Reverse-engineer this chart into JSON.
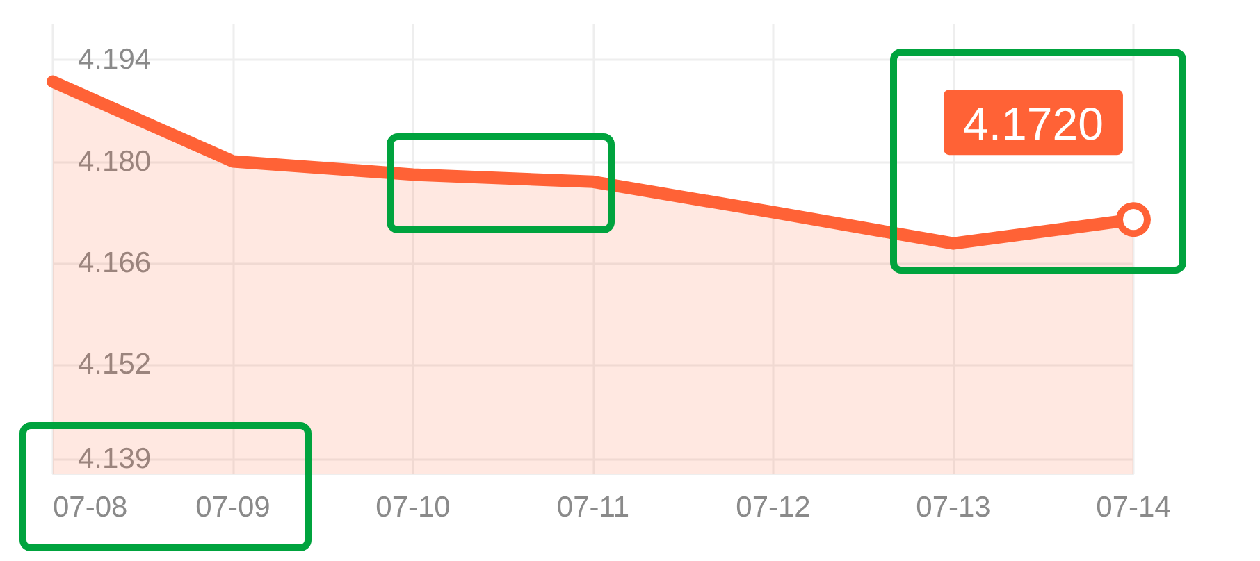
{
  "chart_data": {
    "type": "area",
    "categories": [
      "07-08",
      "07-09",
      "07-10",
      "07-11",
      "07-12",
      "07-13",
      "07-14"
    ],
    "series": [
      {
        "color": "#ff6236",
        "values": [
          4.191,
          4.18,
          4.1782,
          4.1772,
          4.173,
          4.1687,
          4.172
        ],
        "value_labels": [
          null,
          null,
          null,
          null,
          null,
          null,
          "4.1720"
        ]
      }
    ],
    "ylim": [
      4.137,
      4.199
    ],
    "yticks": [
      4.139,
      4.152,
      4.166,
      {
        "value": 4.18,
        "label": "4.180"
      },
      4.194
    ],
    "grid": true
  }
}
